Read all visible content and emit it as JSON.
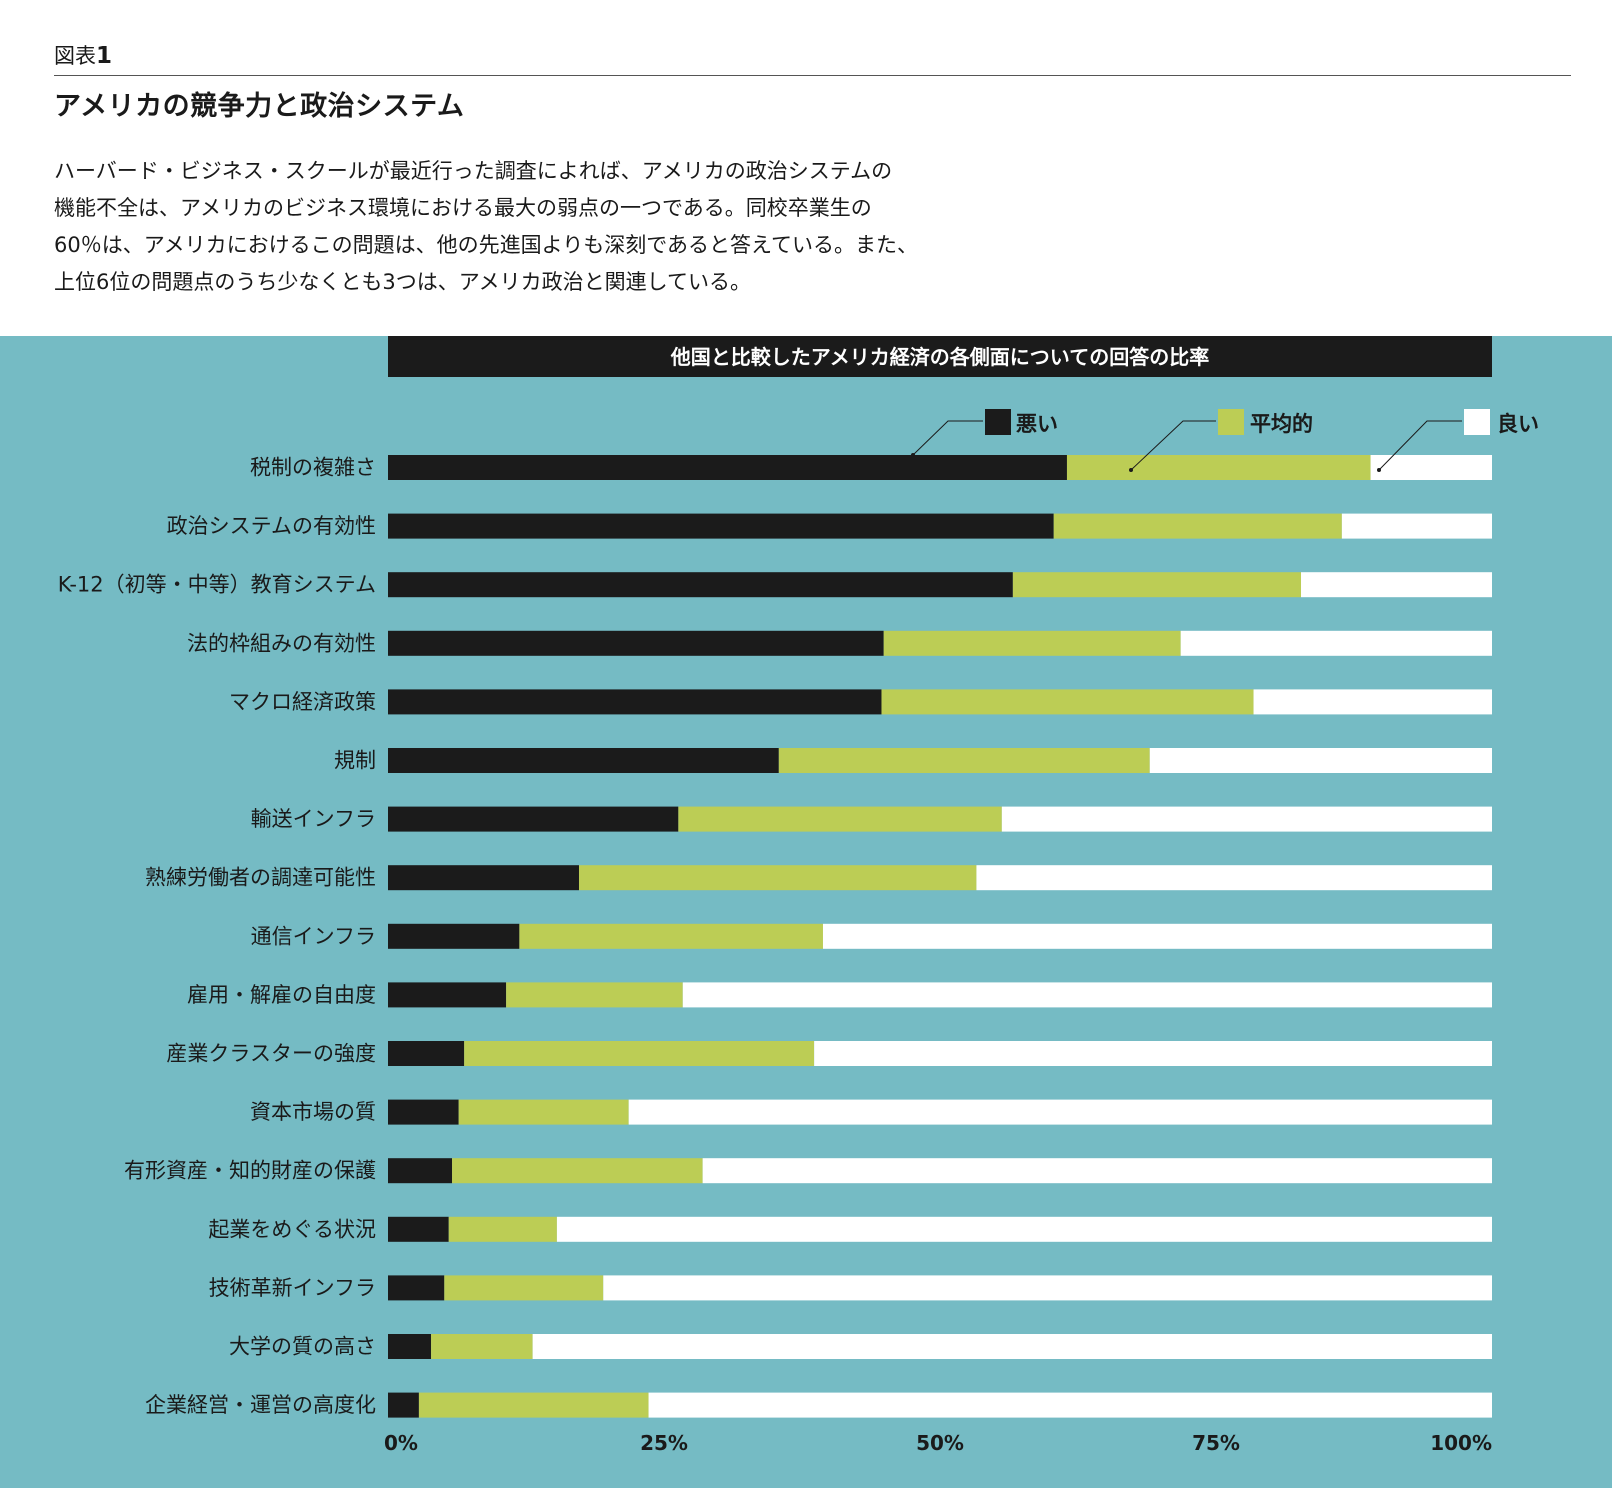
{
  "figure": {
    "label_prefix": "図表",
    "label_number": "1",
    "title": "アメリカの競争力と政治システム",
    "description_lines": [
      "ハーバード・ビジネス・スクールが最近行った調査によれば、アメリカの政治システムの",
      "機能不全は、アメリカのビジネス環境における最大の弱点の一つである。同校卒業生の",
      "60％は、アメリカにおけるこの問題は、他の先進国よりも深刻であると答えている。また、",
      "上位6位の問題点のうち少なくとも3つは、アメリカ政治と関連している。"
    ]
  },
  "colors": {
    "panel_bg": "#75bbc4",
    "bad": "#1b1b1b",
    "average": "#bccd55",
    "good": "#ffffff",
    "header_bar": "#1b1b1b"
  },
  "chart_data": {
    "type": "bar",
    "orientation": "horizontal",
    "stacked": true,
    "title": "他国と比較したアメリカ経済の各側面についての回答の比率",
    "categories": [
      "税制の複雑さ",
      "政治システムの有効性",
      "K-12（初等・中等）教育システム",
      "法的枠組みの有効性",
      "マクロ経済政策",
      "規制",
      "輸送インフラ",
      "熟練労働者の調達可能性",
      "通信インフラ",
      "雇用・解雇の自由度",
      "産業クラスターの強度",
      "資本市場の質",
      "有形資産・知的財産の保護",
      "起業をめぐる状況",
      "技術革新インフラ",
      "大学の質の高さ",
      "企業経営・運営の高度化"
    ],
    "series": [
      {
        "name": "悪い",
        "color": "#1b1b1b",
        "values": [
          61.5,
          60.3,
          56.6,
          44.9,
          44.7,
          35.4,
          26.3,
          17.3,
          11.9,
          10.7,
          6.9,
          6.4,
          5.8,
          5.5,
          5.1,
          3.9,
          2.8
        ]
      },
      {
        "name": "平均的",
        "color": "#bccd55",
        "values": [
          27.5,
          26.1,
          26.1,
          26.9,
          33.7,
          33.6,
          29.3,
          36.0,
          27.5,
          16.0,
          31.7,
          15.4,
          22.7,
          9.8,
          14.4,
          9.2,
          20.8
        ]
      },
      {
        "name": "良い",
        "color": "#ffffff",
        "values": [
          11.0,
          13.6,
          17.3,
          28.2,
          21.6,
          31.0,
          44.4,
          46.7,
          60.6,
          73.3,
          61.4,
          78.2,
          71.5,
          84.7,
          80.5,
          86.9,
          76.4
        ]
      }
    ],
    "xlim": [
      0,
      100
    ],
    "x_ticks": [
      "0%",
      "25%",
      "50%",
      "75%",
      "100%"
    ],
    "legend_position": "top-right",
    "grid": false
  }
}
